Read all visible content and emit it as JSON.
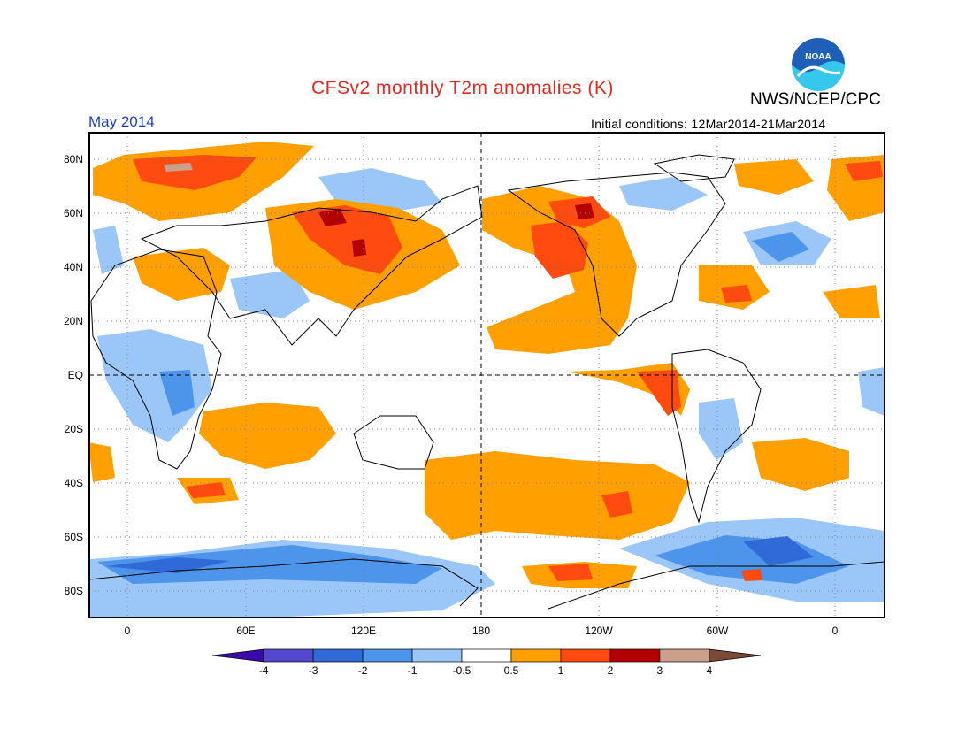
{
  "header": {
    "title": "CFSv2 monthly T2m anomalies (K)",
    "agency": "NWS/NCEP/CPC",
    "logo_text": "NOAA",
    "month": "May 2014",
    "initial_conditions": "Initial conditions: 12Mar2014-21Mar2014"
  },
  "map": {
    "lat_labels": [
      "80N",
      "60N",
      "40N",
      "20N",
      "EQ",
      "20S",
      "40S",
      "60S",
      "80S"
    ],
    "lon_labels": [
      "0",
      "60E",
      "120E",
      "180",
      "120W",
      "60W",
      "0"
    ]
  },
  "colorbar": {
    "labels": [
      "-4",
      "-3",
      "-2",
      "-1",
      "-0.5",
      "0.5",
      "1",
      "2",
      "3",
      "4"
    ],
    "colors": [
      "#3a0aa8",
      "#5548d0",
      "#2f6ad8",
      "#4d95ea",
      "#9ac6f8",
      "#ffffff",
      "#ff9f00",
      "#ff4a10",
      "#b20000",
      "#c9a08a",
      "#7a4a36"
    ]
  },
  "colors": {
    "title": "#e8281e",
    "month": "#1a3fd0",
    "noaa_blue": "#1f5fb8",
    "noaa_cyan": "#36c8ec"
  }
}
